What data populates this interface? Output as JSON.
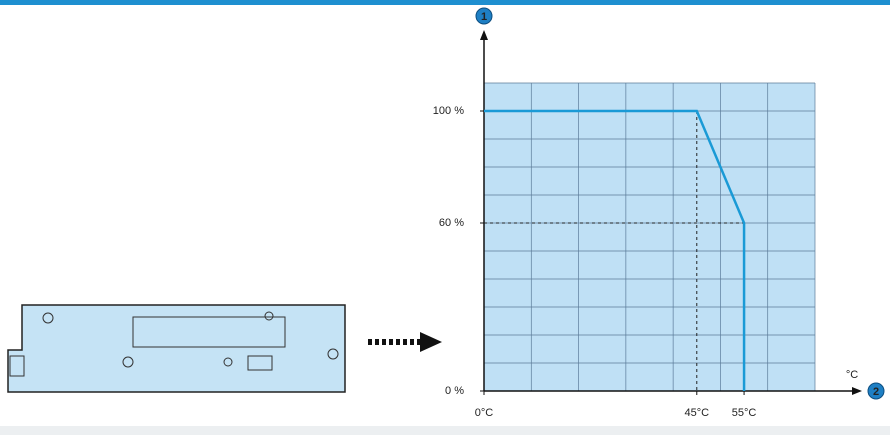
{
  "chart_data": {
    "type": "line",
    "x": [
      0,
      45,
      55,
      55
    ],
    "series": [
      {
        "color": "#1a9ad6",
        "values": [
          100,
          100,
          60,
          0
        ]
      }
    ],
    "xlim": [
      0,
      70
    ],
    "ylim": [
      0,
      110
    ],
    "xticks": [
      {
        "value": 0,
        "label": "0°C"
      },
      {
        "value": 45,
        "label": "45°C"
      },
      {
        "value": 55,
        "label": "55°C"
      }
    ],
    "yticks": [
      {
        "value": 0,
        "label": "0 %"
      },
      {
        "value": 60,
        "label": "60 %"
      },
      {
        "value": 100,
        "label": "100 %"
      }
    ],
    "xgrid": [
      0,
      10,
      20,
      30,
      40,
      50,
      60,
      70
    ],
    "ygrid": [
      0,
      10,
      20,
      30,
      40,
      50,
      60,
      70,
      80,
      90,
      100,
      110
    ],
    "grid": true,
    "xlabel": "°C",
    "y_axis_marker": "1",
    "x_axis_marker": "2"
  }
}
